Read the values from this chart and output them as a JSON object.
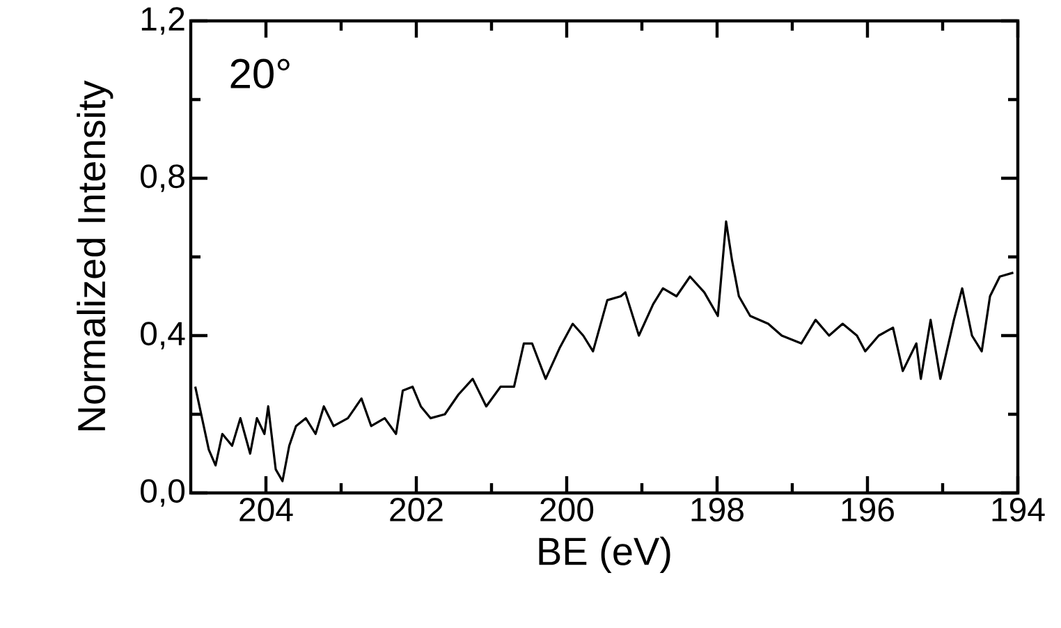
{
  "chart_data": {
    "type": "line",
    "xlabel": "BE (eV)",
    "ylabel": "Normalized Intensity",
    "annotations": [
      "20°"
    ],
    "xlim": [
      205,
      194
    ],
    "xticks": [
      204,
      202,
      200,
      198,
      196,
      194
    ],
    "ylim": [
      0,
      1.2
    ],
    "yticks": [
      {
        "value": 0,
        "label": "0,0"
      },
      {
        "value": 0.4,
        "label": "0,4"
      },
      {
        "value": 0.8,
        "label": "0,8"
      },
      {
        "value": 1.2,
        "label": "1,2"
      }
    ],
    "grid": false,
    "marker": "none",
    "line_style": "solid",
    "series": [
      {
        "color": "#000000",
        "x": [
          204.94,
          204.85,
          204.76,
          204.67,
          204.58,
          204.45,
          204.34,
          204.21,
          204.12,
          204.02,
          203.97,
          203.87,
          203.78,
          203.69,
          203.6,
          203.47,
          203.34,
          203.23,
          203.1,
          202.91,
          202.73,
          202.6,
          202.42,
          202.27,
          202.18,
          202.05,
          201.94,
          201.81,
          201.62,
          201.44,
          201.25,
          201.07,
          200.88,
          200.7,
          200.57,
          200.46,
          200.28,
          200.09,
          199.92,
          199.78,
          199.65,
          199.46,
          199.28,
          199.22,
          199.04,
          198.85,
          198.72,
          198.54,
          198.36,
          198.17,
          197.99,
          197.88,
          197.8,
          197.71,
          197.56,
          197.32,
          197.14,
          196.88,
          196.69,
          196.51,
          196.33,
          196.14,
          196.03,
          195.85,
          195.66,
          195.53,
          195.35,
          195.29,
          195.16,
          195.03,
          194.85,
          194.74,
          194.61,
          194.48,
          194.37,
          194.24,
          194.06
        ],
        "values": [
          0.27,
          0.19,
          0.11,
          0.07,
          0.15,
          0.12,
          0.19,
          0.1,
          0.19,
          0.15,
          0.22,
          0.06,
          0.03,
          0.12,
          0.17,
          0.19,
          0.15,
          0.22,
          0.17,
          0.19,
          0.24,
          0.17,
          0.19,
          0.15,
          0.26,
          0.27,
          0.22,
          0.19,
          0.2,
          0.25,
          0.29,
          0.22,
          0.27,
          0.27,
          0.38,
          0.38,
          0.29,
          0.37,
          0.43,
          0.4,
          0.36,
          0.49,
          0.5,
          0.51,
          0.4,
          0.48,
          0.52,
          0.5,
          0.55,
          0.51,
          0.45,
          0.69,
          0.59,
          0.5,
          0.45,
          0.43,
          0.4,
          0.38,
          0.44,
          0.4,
          0.43,
          0.4,
          0.36,
          0.4,
          0.42,
          0.31,
          0.38,
          0.29,
          0.44,
          0.29,
          0.44,
          0.52,
          0.4,
          0.36,
          0.5,
          0.55,
          0.56
        ]
      }
    ]
  }
}
